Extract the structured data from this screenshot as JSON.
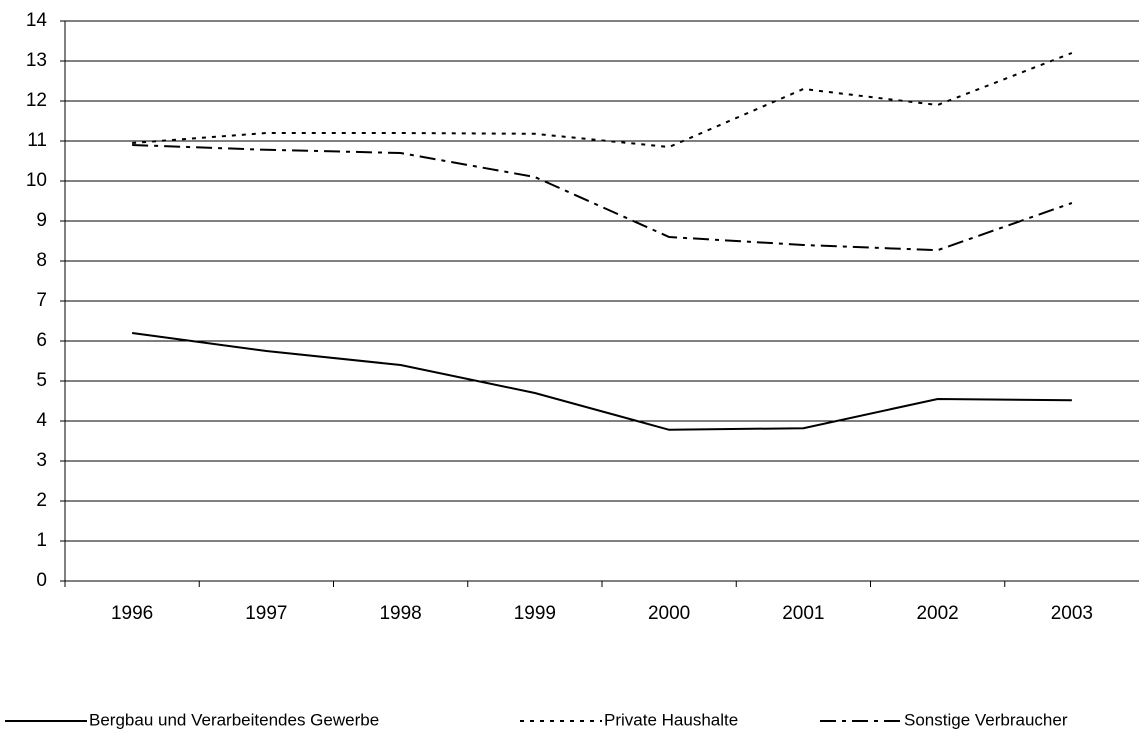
{
  "chart_data": {
    "type": "line",
    "categories": [
      "1996",
      "1997",
      "1998",
      "1999",
      "2000",
      "2001",
      "2002",
      "2003"
    ],
    "series": [
      {
        "name": "Bergbau und Verarbeitendes Gewerbe",
        "color": "#000000",
        "dash": "solid",
        "values": [
          6.2,
          5.75,
          5.4,
          4.7,
          3.78,
          3.82,
          4.55,
          4.52
        ]
      },
      {
        "name": "Private Haushalte",
        "color": "#000000",
        "dash": "dotted",
        "values": [
          10.95,
          11.2,
          11.2,
          11.18,
          10.85,
          12.3,
          11.9,
          13.2
        ]
      },
      {
        "name": "Sonstige Verbraucher",
        "color": "#000000",
        "dash": "dashdot",
        "values": [
          10.9,
          10.78,
          10.7,
          10.1,
          8.6,
          8.4,
          8.27,
          9.45
        ]
      }
    ],
    "ylim": [
      0,
      14
    ],
    "yticks": [
      0,
      1,
      2,
      3,
      4,
      5,
      6,
      7,
      8,
      9,
      10,
      11,
      12,
      13,
      14
    ],
    "grid": true,
    "legend": "bottom"
  }
}
